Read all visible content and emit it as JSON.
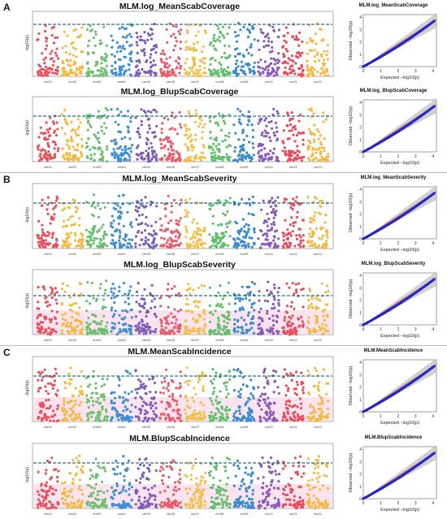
{
  "panels": [
    {
      "letter": "A",
      "title": "MLM.log_MeanScabCoverage",
      "qq_title": "MLM.log_MeanScabCoverage"
    },
    {
      "letter": "",
      "title": "MLM.log_BlupScabCoverage",
      "qq_title": "MLM.log_BlupScabCoverage"
    },
    {
      "letter": "B",
      "title": "MLM.log_MeanScabSeverity",
      "qq_title": "MLM.log_MeanScabSeverity"
    },
    {
      "letter": "",
      "title": "MLM.log_BlupScabSeverity",
      "qq_title": "MLM.log_BlupScabSeverity"
    },
    {
      "letter": "C",
      "title": "MLM.MeanScabIncidence",
      "qq_title": "MLM.MeanScabIncidence"
    },
    {
      "letter": "",
      "title": "MLM.BlupScabIncidence",
      "qq_title": "MLM.BlupScabIncidence"
    }
  ],
  "manhattan_ylabel": "-log10(p)",
  "chromosomes": [
    "chr01",
    "chr02",
    "chr03",
    "chr04",
    "chr05",
    "chr06",
    "chr07",
    "chr08",
    "chr09",
    "chr10",
    "chr11",
    "chr12"
  ],
  "qq_xlabel": "Expected −log10(p)",
  "qq_ylabel": "Observed −log10(p)",
  "colors": {
    "chrom": [
      "#e8505b",
      "#f5b942",
      "#6cc070",
      "#3f8fd2",
      "#7a5db8",
      "#e85b6b",
      "#f2c04a",
      "#5fbf6a",
      "#3b8ad0",
      "#8a5ab8",
      "#e84c5c",
      "#f3b945"
    ],
    "threshold": "#1f6f8b",
    "qq_points": "#2323c8",
    "qq_line": "#c24a4a",
    "qq_band": "#bcbcbc"
  },
  "chart_data": [
    {
      "type": "scatter",
      "title": "MLM.log_MeanScabCoverage",
      "ylabel": "-log10(p)",
      "categories": [
        "chr01",
        "chr02",
        "chr03",
        "chr04",
        "chr05",
        "chr06",
        "chr07",
        "chr08",
        "chr09",
        "chr10",
        "chr11",
        "chr12"
      ],
      "ylim": [
        0,
        5
      ],
      "threshold": 4.0
    },
    {
      "type": "scatter",
      "title": "MLM.log_BlupScabCoverage",
      "ylabel": "-log10(p)",
      "categories": [
        "chr01",
        "chr02",
        "chr03",
        "chr04",
        "chr05",
        "chr06",
        "chr07",
        "chr08",
        "chr09",
        "chr10",
        "chr11",
        "chr12"
      ],
      "ylim": [
        0,
        5
      ],
      "threshold": 3.5
    },
    {
      "type": "scatter",
      "title": "MLM.log_MeanScabSeverity",
      "ylabel": "-log10(p)",
      "categories": [
        "chr01",
        "chr02",
        "chr03",
        "chr04",
        "chr05",
        "chr06",
        "chr07",
        "chr08",
        "chr09",
        "chr10",
        "chr11",
        "chr12"
      ],
      "ylim": [
        0,
        5
      ],
      "threshold": 3.5
    },
    {
      "type": "scatter",
      "title": "MLM.log_BlupScabSeverity",
      "ylabel": "-log10(p)",
      "categories": [
        "chr01",
        "chr02",
        "chr03",
        "chr04",
        "chr05",
        "chr06",
        "chr07",
        "chr08",
        "chr09",
        "chr10",
        "chr11",
        "chr12"
      ],
      "ylim": [
        0,
        5
      ],
      "threshold": 3.0
    },
    {
      "type": "scatter",
      "title": "MLM.MeanScabIncidence",
      "ylabel": "-log10(p)",
      "categories": [
        "chr01",
        "chr02",
        "chr03",
        "chr04",
        "chr05",
        "chr06",
        "chr07",
        "chr08",
        "chr09",
        "chr10",
        "chr11",
        "chr12"
      ],
      "ylim": [
        0,
        5
      ],
      "threshold": 3.5
    },
    {
      "type": "scatter",
      "title": "MLM.BlupScabIncidence",
      "ylabel": "-log10(p)",
      "categories": [
        "chr01",
        "chr02",
        "chr03",
        "chr04",
        "chr05",
        "chr06",
        "chr07",
        "chr08",
        "chr09",
        "chr10",
        "chr11",
        "chr12"
      ],
      "ylim": [
        0,
        5
      ],
      "threshold": 3.5
    }
  ]
}
